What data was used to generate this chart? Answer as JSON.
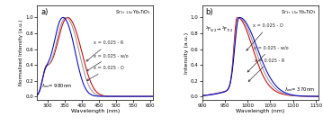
{
  "panel_a": {
    "title": "Sr$_{1+1.5x}$Yb$_x$TiO$_3$",
    "xlabel": "Wavelength (nm)",
    "ylabel": "Normalized Intensity (a.u.)",
    "xmin": 270,
    "xmax": 610,
    "xticks": [
      300,
      350,
      400,
      450,
      500,
      550,
      600
    ],
    "lambda_ex": "$\\lambda_{ex}$= 980nm",
    "label": "a)"
  },
  "panel_b": {
    "title": "Sr$_{1+1.5x}$Yb$_x$TiO$_3$",
    "xlabel": "Wavelength (nm)",
    "ylabel": "Intensity (a.u.)",
    "xmin": 900,
    "xmax": 1155,
    "xticks": [
      900,
      950,
      1000,
      1050,
      1100,
      1150
    ],
    "lambda_ex": "$\\lambda_{ex}$= 370nm",
    "label": "b)",
    "transition": "$^2$F$_{5/2}$$\\rightarrow$$^2$F$_{7/2}$"
  },
  "colors": {
    "R": "#cc0000",
    "wo": "#999999",
    "O": "#0000cc"
  },
  "background": "#ffffff"
}
